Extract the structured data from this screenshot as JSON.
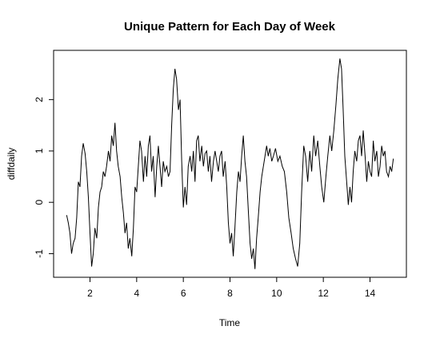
{
  "chart_data": {
    "type": "line",
    "title": "Unique Pattern for Each Day of Week",
    "xlabel": "Time",
    "ylabel": "diffdaily",
    "color": "#000000",
    "x": [
      1.0,
      1.07,
      1.14,
      1.21,
      1.28,
      1.36,
      1.43,
      1.5,
      1.57,
      1.64,
      1.71,
      1.79,
      1.86,
      1.93,
      2.0,
      2.07,
      2.14,
      2.21,
      2.29,
      2.36,
      2.43,
      2.5,
      2.57,
      2.64,
      2.71,
      2.79,
      2.86,
      2.93,
      3.0,
      3.07,
      3.14,
      3.21,
      3.29,
      3.36,
      3.43,
      3.5,
      3.57,
      3.64,
      3.71,
      3.79,
      3.86,
      3.93,
      4.0,
      4.07,
      4.14,
      4.21,
      4.29,
      4.36,
      4.43,
      4.5,
      4.57,
      4.64,
      4.71,
      4.79,
      4.86,
      4.93,
      5.0,
      5.07,
      5.14,
      5.21,
      5.29,
      5.36,
      5.43,
      5.5,
      5.57,
      5.64,
      5.71,
      5.79,
      5.86,
      5.93,
      6.0,
      6.07,
      6.14,
      6.21,
      6.29,
      6.36,
      6.43,
      6.5,
      6.57,
      6.64,
      6.71,
      6.79,
      6.86,
      6.93,
      7.0,
      7.07,
      7.14,
      7.21,
      7.29,
      7.36,
      7.43,
      7.5,
      7.57,
      7.64,
      7.71,
      7.79,
      7.86,
      7.93,
      8.0,
      8.07,
      8.14,
      8.21,
      8.29,
      8.36,
      8.43,
      8.5,
      8.57,
      8.64,
      8.71,
      8.79,
      8.86,
      8.93,
      9.0,
      9.07,
      9.14,
      9.21,
      9.29,
      9.36,
      9.43,
      9.5,
      9.57,
      9.64,
      9.71,
      9.79,
      9.86,
      9.95,
      10.05,
      10.14,
      10.24,
      10.33,
      10.43,
      10.52,
      10.62,
      10.71,
      10.81,
      10.9,
      10.99,
      11.07,
      11.16,
      11.24,
      11.33,
      11.42,
      11.5,
      11.59,
      11.67,
      11.76,
      11.85,
      11.93,
      12.02,
      12.11,
      12.19,
      12.28,
      12.36,
      12.45,
      12.54,
      12.62,
      12.71,
      12.78,
      12.85,
      12.92,
      13.0,
      13.07,
      13.14,
      13.21,
      13.28,
      13.35,
      13.43,
      13.5,
      13.57,
      13.64,
      13.71,
      13.79,
      13.86,
      13.93,
      14.0,
      14.07,
      14.14,
      14.21,
      14.29,
      14.36,
      14.43,
      14.5,
      14.57,
      14.64,
      14.71,
      14.79,
      14.86,
      14.93,
      15.0
    ],
    "values": [
      -0.25,
      -0.4,
      -0.6,
      -1.0,
      -0.8,
      -0.7,
      -0.3,
      0.4,
      0.3,
      0.9,
      1.15,
      0.95,
      0.6,
      0.1,
      -0.6,
      -1.25,
      -1.0,
      -0.5,
      -0.7,
      -0.1,
      0.2,
      0.3,
      0.6,
      0.5,
      0.7,
      1.0,
      0.8,
      1.3,
      1.1,
      1.55,
      1.0,
      0.7,
      0.5,
      0.1,
      -0.2,
      -0.6,
      -0.4,
      -0.9,
      -0.7,
      -1.05,
      -0.5,
      0.3,
      0.2,
      0.7,
      1.2,
      1.0,
      0.4,
      0.9,
      0.5,
      1.1,
      1.3,
      0.6,
      0.9,
      0.1,
      0.7,
      1.1,
      0.7,
      0.3,
      0.8,
      0.6,
      0.7,
      0.5,
      0.6,
      1.5,
      2.2,
      2.6,
      2.4,
      1.8,
      2.0,
      0.8,
      -0.1,
      0.3,
      -0.05,
      0.7,
      0.9,
      0.6,
      1.0,
      0.4,
      1.2,
      1.3,
      0.8,
      1.1,
      0.7,
      0.95,
      1.0,
      0.6,
      0.9,
      0.4,
      0.8,
      1.0,
      0.8,
      0.6,
      0.9,
      1.0,
      0.5,
      0.8,
      0.3,
      -0.4,
      -0.8,
      -0.6,
      -1.05,
      -0.5,
      0.2,
      0.6,
      0.4,
      0.9,
      1.3,
      0.8,
      0.5,
      -0.2,
      -0.8,
      -1.1,
      -0.9,
      -1.3,
      -0.7,
      -0.3,
      0.2,
      0.5,
      0.7,
      0.9,
      1.1,
      0.9,
      1.05,
      0.8,
      0.9,
      1.05,
      0.8,
      0.9,
      0.7,
      0.6,
      0.2,
      -0.3,
      -0.6,
      -0.9,
      -1.1,
      -1.25,
      -0.8,
      0.2,
      1.1,
      0.9,
      0.4,
      1.0,
      0.6,
      1.3,
      0.9,
      1.2,
      0.7,
      0.3,
      0.0,
      0.5,
      0.9,
      1.3,
      1.0,
      1.4,
      1.9,
      2.4,
      2.8,
      2.6,
      1.8,
      0.9,
      0.4,
      -0.05,
      0.3,
      0.0,
      0.6,
      1.0,
      0.8,
      1.2,
      1.3,
      0.9,
      1.4,
      0.9,
      0.4,
      0.8,
      0.6,
      0.5,
      1.2,
      0.8,
      1.0,
      0.5,
      0.7,
      1.1,
      0.9,
      1.0,
      0.6,
      0.5,
      0.7,
      0.6,
      0.85
    ],
    "xlim": [
      0.44,
      15.56
    ],
    "xticks": [
      2,
      4,
      6,
      8,
      10,
      12,
      14
    ],
    "ylim": [
      -1.46,
      2.96
    ],
    "yticks": [
      -1,
      0,
      1,
      2
    ],
    "grid": false
  }
}
